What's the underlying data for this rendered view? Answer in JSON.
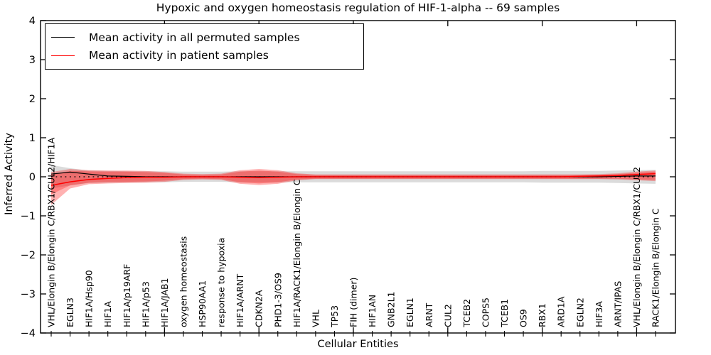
{
  "title": "Hypoxic and oxygen homeostasis regulation of HIF-1-alpha -- 69 samples",
  "xlabel": "Cellular Entities",
  "ylabel": "Inferred Activity",
  "legend": {
    "items": [
      {
        "label": "Mean activity in all permuted samples",
        "color": "#000000"
      },
      {
        "label": "Mean activity in patient samples",
        "color": "#ff0000"
      }
    ]
  },
  "colors": {
    "patient_red": "#ff0000",
    "permuted_black": "#000000",
    "band_gray": "#999999",
    "background": "#ffffff",
    "axis": "#000000"
  },
  "chart_data": {
    "type": "line",
    "title": "Hypoxic and oxygen homeostasis regulation of HIF-1-alpha -- 69 samples",
    "xlabel": "Cellular Entities",
    "ylabel": "Inferred Activity",
    "ylim": [
      -4,
      4
    ],
    "yticks": [
      -4,
      -3,
      -2,
      -1,
      0,
      1,
      2,
      3,
      4
    ],
    "x_major_tick_indices": [
      6,
      11,
      16,
      21,
      26,
      31
    ],
    "grid": false,
    "legend_position": "upper left",
    "zero_line": {
      "style": "dotted",
      "color": "#000000",
      "y": 0
    },
    "categories": [
      "VHL/Elongin B/Elongin C/RBX1/CUL2/HIF1A",
      "EGLN3",
      "HIF1A/Hsp90",
      "HIF1A",
      "HIF1A/p19ARF",
      "HIF1A/p53",
      "HIF1A/JAB1",
      "oxygen homeostasis",
      "HSP90AA1",
      "response to hypoxia",
      "HIF1A/ARNT",
      "CDKN2A",
      "PHD1-3/OS9",
      "HIF1A/RACK1/Elongin B/Elongin C",
      "VHL",
      "TP53",
      "FIH (dimer)",
      "HIF1AN",
      "GNB2L1",
      "EGLN1",
      "ARNT",
      "CUL2",
      "TCEB2",
      "COPS5",
      "TCEB1",
      "OS9",
      "RBX1",
      "ARD1A",
      "EGLN2",
      "HIF3A",
      "ARNT/IPAS",
      "VHL/Elongin B/Elongin C/RBX1/CUL2",
      "RACK1/Elongin B/Elongin C"
    ],
    "series": [
      {
        "name": "Mean activity in all permuted samples",
        "color": "#000000",
        "values": [
          0.07,
          0.12,
          0.07,
          0.02,
          0.01,
          0.0,
          0.0,
          0.0,
          0.0,
          0.0,
          0.0,
          0.0,
          0.0,
          0.0,
          0.0,
          0.0,
          0.0,
          0.0,
          0.0,
          0.0,
          0.0,
          0.0,
          0.0,
          0.0,
          0.0,
          0.0,
          0.0,
          0.0,
          0.0,
          0.0,
          0.01,
          0.02,
          0.02
        ]
      },
      {
        "name": "Mean activity in patient samples",
        "color": "#ff0000",
        "values": [
          -0.22,
          -0.13,
          -0.07,
          -0.04,
          -0.02,
          -0.01,
          -0.01,
          0.0,
          0.0,
          0.0,
          -0.01,
          -0.02,
          -0.01,
          0.0,
          0.0,
          0.0,
          0.0,
          0.0,
          0.0,
          0.0,
          0.0,
          0.0,
          0.0,
          0.0,
          0.0,
          0.0,
          0.0,
          0.0,
          0.01,
          0.02,
          0.03,
          0.06,
          0.08
        ]
      }
    ],
    "bands": [
      {
        "name": "permuted-samples-band",
        "color": "#999999",
        "opacity": 0.35,
        "upper": [
          0.3,
          0.22,
          0.16,
          0.15,
          0.14,
          0.14,
          0.14,
          0.13,
          0.13,
          0.13,
          0.14,
          0.14,
          0.14,
          0.14,
          0.14,
          0.14,
          0.14,
          0.14,
          0.14,
          0.14,
          0.14,
          0.14,
          0.14,
          0.14,
          0.14,
          0.14,
          0.15,
          0.15,
          0.15,
          0.15,
          0.16,
          0.17,
          0.18
        ],
        "lower": [
          -0.3,
          -0.22,
          -0.16,
          -0.15,
          -0.14,
          -0.14,
          -0.14,
          -0.13,
          -0.13,
          -0.13,
          -0.14,
          -0.14,
          -0.14,
          -0.14,
          -0.14,
          -0.14,
          -0.14,
          -0.14,
          -0.14,
          -0.14,
          -0.14,
          -0.14,
          -0.14,
          -0.14,
          -0.14,
          -0.14,
          -0.15,
          -0.15,
          -0.15,
          -0.15,
          -0.16,
          -0.17,
          -0.18
        ]
      },
      {
        "name": "patient-samples-band-outer",
        "color": "#ff0000",
        "opacity": 0.3,
        "upper": [
          0.12,
          0.2,
          0.17,
          0.16,
          0.16,
          0.15,
          0.12,
          0.08,
          0.07,
          0.08,
          0.17,
          0.2,
          0.17,
          0.09,
          0.06,
          0.06,
          0.06,
          0.06,
          0.06,
          0.06,
          0.06,
          0.06,
          0.06,
          0.06,
          0.06,
          0.06,
          0.06,
          0.06,
          0.06,
          0.07,
          0.09,
          0.13,
          0.16
        ],
        "lower": [
          -0.72,
          -0.3,
          -0.19,
          -0.17,
          -0.16,
          -0.15,
          -0.13,
          -0.08,
          -0.07,
          -0.08,
          -0.18,
          -0.21,
          -0.18,
          -0.09,
          -0.06,
          -0.06,
          -0.06,
          -0.06,
          -0.06,
          -0.06,
          -0.06,
          -0.06,
          -0.06,
          -0.06,
          -0.06,
          -0.06,
          -0.06,
          -0.06,
          -0.06,
          -0.06,
          -0.07,
          -0.09,
          -0.11
        ]
      },
      {
        "name": "patient-samples-band-inner",
        "color": "#ff0000",
        "opacity": 0.28,
        "upper": [
          0.06,
          0.15,
          0.14,
          0.13,
          0.13,
          0.12,
          0.1,
          0.06,
          0.05,
          0.06,
          0.13,
          0.16,
          0.13,
          0.07,
          0.05,
          0.05,
          0.05,
          0.05,
          0.05,
          0.05,
          0.05,
          0.05,
          0.05,
          0.05,
          0.05,
          0.05,
          0.05,
          0.05,
          0.05,
          0.05,
          0.07,
          0.1,
          0.13
        ],
        "lower": [
          -0.45,
          -0.22,
          -0.15,
          -0.13,
          -0.13,
          -0.12,
          -0.1,
          -0.06,
          -0.05,
          -0.06,
          -0.14,
          -0.17,
          -0.14,
          -0.07,
          -0.05,
          -0.05,
          -0.05,
          -0.05,
          -0.05,
          -0.05,
          -0.05,
          -0.05,
          -0.05,
          -0.05,
          -0.05,
          -0.05,
          -0.05,
          -0.05,
          -0.05,
          -0.05,
          -0.05,
          -0.07,
          -0.08
        ]
      }
    ]
  }
}
